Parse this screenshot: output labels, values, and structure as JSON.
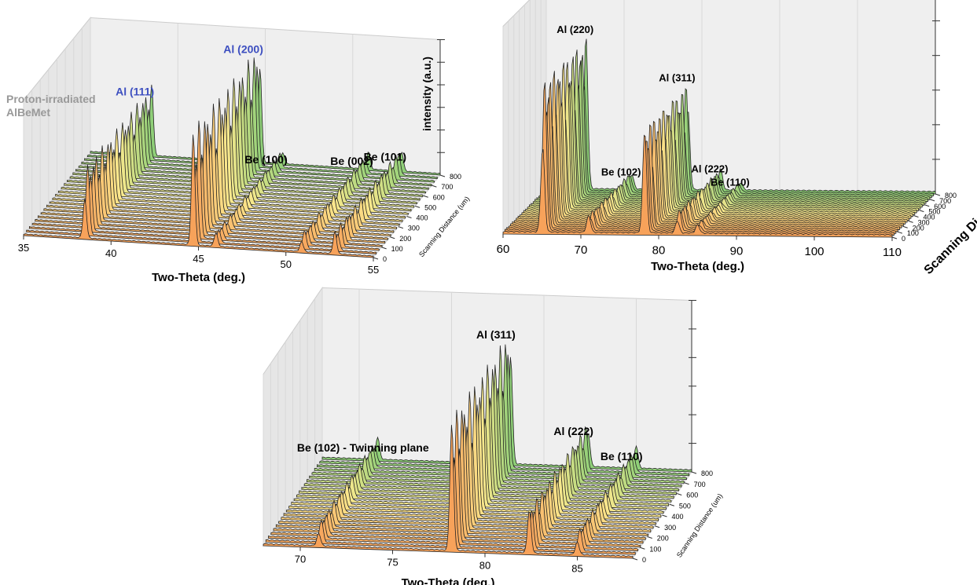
{
  "chart_data": [
    {
      "type": "waterfall",
      "xlabel": "Two-Theta (deg.)",
      "ylabel": "Scanning Distance (um)",
      "zlabel": "intensity (a.u.)",
      "annotation": "Proton-irradiated AlBeMet",
      "xlim": [
        35,
        55
      ],
      "xticks": [
        35,
        40,
        45,
        50,
        55
      ],
      "ylim": [
        0,
        800
      ],
      "yticks": [
        0,
        100,
        200,
        300,
        400,
        500,
        600,
        700,
        800
      ],
      "colormap": [
        "#f7a25a",
        "#fbe98e",
        "#8fcf78"
      ],
      "peaks": [
        {
          "label": "Al (111)",
          "x": 38.5,
          "height": 0.6,
          "color": "#3d4fc0"
        },
        {
          "label": "Al (200)",
          "x": 44.7,
          "height": 1.0,
          "color": "#3d4fc0"
        },
        {
          "label": "Be (100)",
          "x": 46.0,
          "height": 0.12,
          "color": "#000000"
        },
        {
          "label": "Be (002)",
          "x": 50.9,
          "height": 0.15,
          "color": "#000000"
        },
        {
          "label": "Be (101)",
          "x": 52.8,
          "height": 0.2,
          "color": "#000000"
        }
      ]
    },
    {
      "type": "waterfall",
      "xlabel": "Two-Theta (deg.)",
      "ylabel": "Scanning Distance",
      "xlim": [
        60,
        110
      ],
      "xticks": [
        60,
        70,
        80,
        90,
        100,
        110
      ],
      "ylim": [
        0,
        800
      ],
      "yticks": [
        0,
        100,
        200,
        300,
        400,
        500,
        600,
        700,
        800
      ],
      "colormap": [
        "#f7a25a",
        "#fbe98e",
        "#8fcf78"
      ],
      "peaks": [
        {
          "label": "Al (220)",
          "x": 65.1,
          "height": 0.85,
          "color": "#000000"
        },
        {
          "label": "Be (102)",
          "x": 71.0,
          "height": 0.1,
          "color": "#000000"
        },
        {
          "label": "Al (311)",
          "x": 78.2,
          "height": 0.6,
          "color": "#000000"
        },
        {
          "label": "Al (222)",
          "x": 82.4,
          "height": 0.12,
          "color": "#000000"
        },
        {
          "label": "Be (110)",
          "x": 85.0,
          "height": 0.05,
          "color": "#000000"
        }
      ]
    },
    {
      "type": "waterfall",
      "xlabel": "Two-Theta (deg.)",
      "ylabel": "Scanning Distance (um)",
      "xlim": [
        68,
        88
      ],
      "xticks": [
        70,
        75,
        80,
        85
      ],
      "ylim": [
        0,
        800
      ],
      "yticks": [
        0,
        100,
        200,
        300,
        400,
        500,
        600,
        700,
        800
      ],
      "colormap": [
        "#f7a25a",
        "#fbe98e",
        "#8fcf78"
      ],
      "peaks": [
        {
          "label": "Be (102) - Twinning plane",
          "x": 71.0,
          "height": 0.15,
          "color": "#000000"
        },
        {
          "label": "Al (311)",
          "x": 78.2,
          "height": 0.9,
          "color": "#000000"
        },
        {
          "label": "Al (222)",
          "x": 82.4,
          "height": 0.3,
          "color": "#000000"
        },
        {
          "label": "Be (110)",
          "x": 85.0,
          "height": 0.15,
          "color": "#000000"
        }
      ]
    }
  ]
}
